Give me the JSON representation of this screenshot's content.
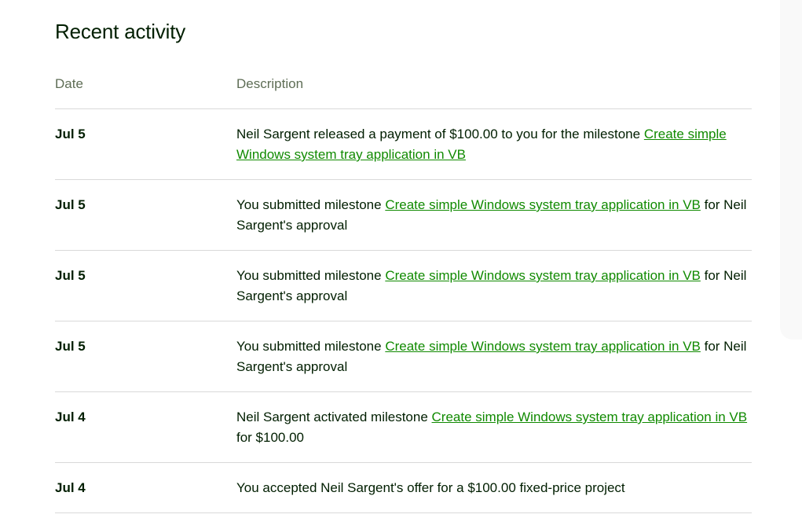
{
  "title": "Recent activity",
  "columns": {
    "date": "Date",
    "description": "Description"
  },
  "rows": [
    {
      "date": "Jul 5",
      "before": "Neil Sargent released a payment of $100.00 to you for the milestone ",
      "link": "Create simple Windows system tray application in VB",
      "after": ""
    },
    {
      "date": "Jul 5",
      "before": "You submitted milestone ",
      "link": "Create simple Windows system tray application in VB",
      "after": " for Neil Sargent's approval"
    },
    {
      "date": "Jul 5",
      "before": "You submitted milestone ",
      "link": "Create simple Windows system tray application in VB",
      "after": " for Neil Sargent's approval"
    },
    {
      "date": "Jul 5",
      "before": "You submitted milestone ",
      "link": "Create simple Windows system tray application in VB",
      "after": " for Neil Sargent's approval"
    },
    {
      "date": "Jul 4",
      "before": "Neil Sargent activated milestone ",
      "link": "Create simple Windows system tray application in VB",
      "after": " for $100.00"
    },
    {
      "date": "Jul 4",
      "before": "You accepted Neil Sargent's offer for a $100.00 fixed-price project",
      "link": "",
      "after": ""
    }
  ],
  "colors": {
    "link": "#108a00",
    "text": "#001e00",
    "muted": "#5e6d55",
    "panel": "#f9f9f9"
  }
}
